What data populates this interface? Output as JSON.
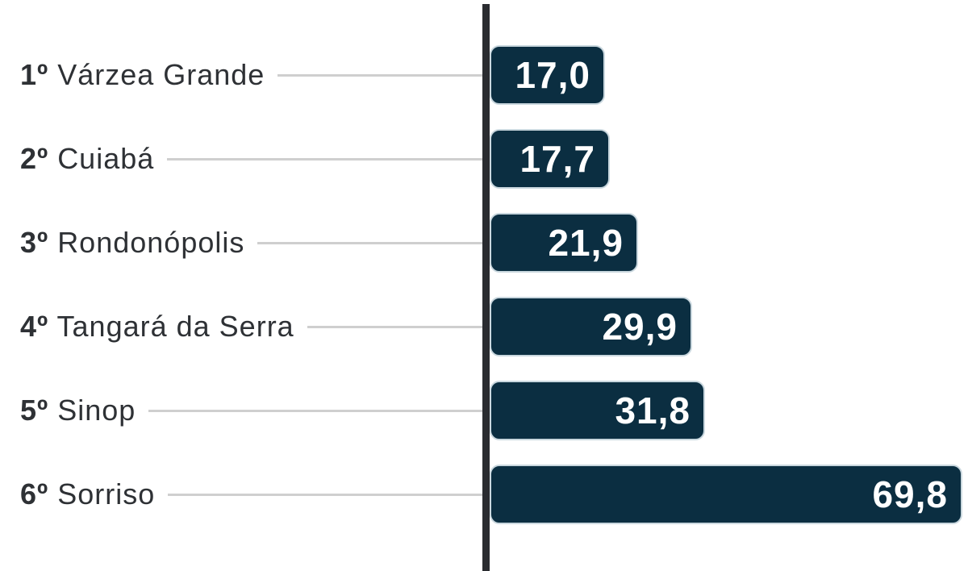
{
  "chart_data": {
    "type": "bar",
    "orientation": "horizontal",
    "title": "",
    "xlabel": "",
    "ylabel": "",
    "grid": false,
    "legend": null,
    "xlim": [
      0,
      70.5
    ],
    "categories": [
      "Várzea Grande",
      "Cuiabá",
      "Rondonópolis",
      "Tangará da Serra",
      "Sinop",
      "Sorriso"
    ],
    "values": [
      17.0,
      17.7,
      21.9,
      29.9,
      31.8,
      69.8
    ],
    "items": [
      {
        "rank": "1º",
        "city": "Várzea Grande",
        "value": 17.0,
        "value_label": "17,0"
      },
      {
        "rank": "2º",
        "city": "Cuiabá",
        "value": 17.7,
        "value_label": "17,7"
      },
      {
        "rank": "3º",
        "city": "Rondonópolis",
        "value": 21.9,
        "value_label": "21,9"
      },
      {
        "rank": "4º",
        "city": "Tangará da Serra",
        "value": 29.9,
        "value_label": "29,9"
      },
      {
        "rank": "5º",
        "city": "Sinop",
        "value": 31.8,
        "value_label": "31,8"
      },
      {
        "rank": "6º",
        "city": "Sorriso",
        "value": 69.8,
        "value_label": "69,8"
      }
    ]
  },
  "colors": {
    "background": "#ffffff",
    "bar": "#0b2e41",
    "bar_outline": "#c9d7de",
    "value_text": "#ffffff",
    "label_text": "#2e3135",
    "connector": "#cfcfcf",
    "axis": "#2a2c30"
  }
}
